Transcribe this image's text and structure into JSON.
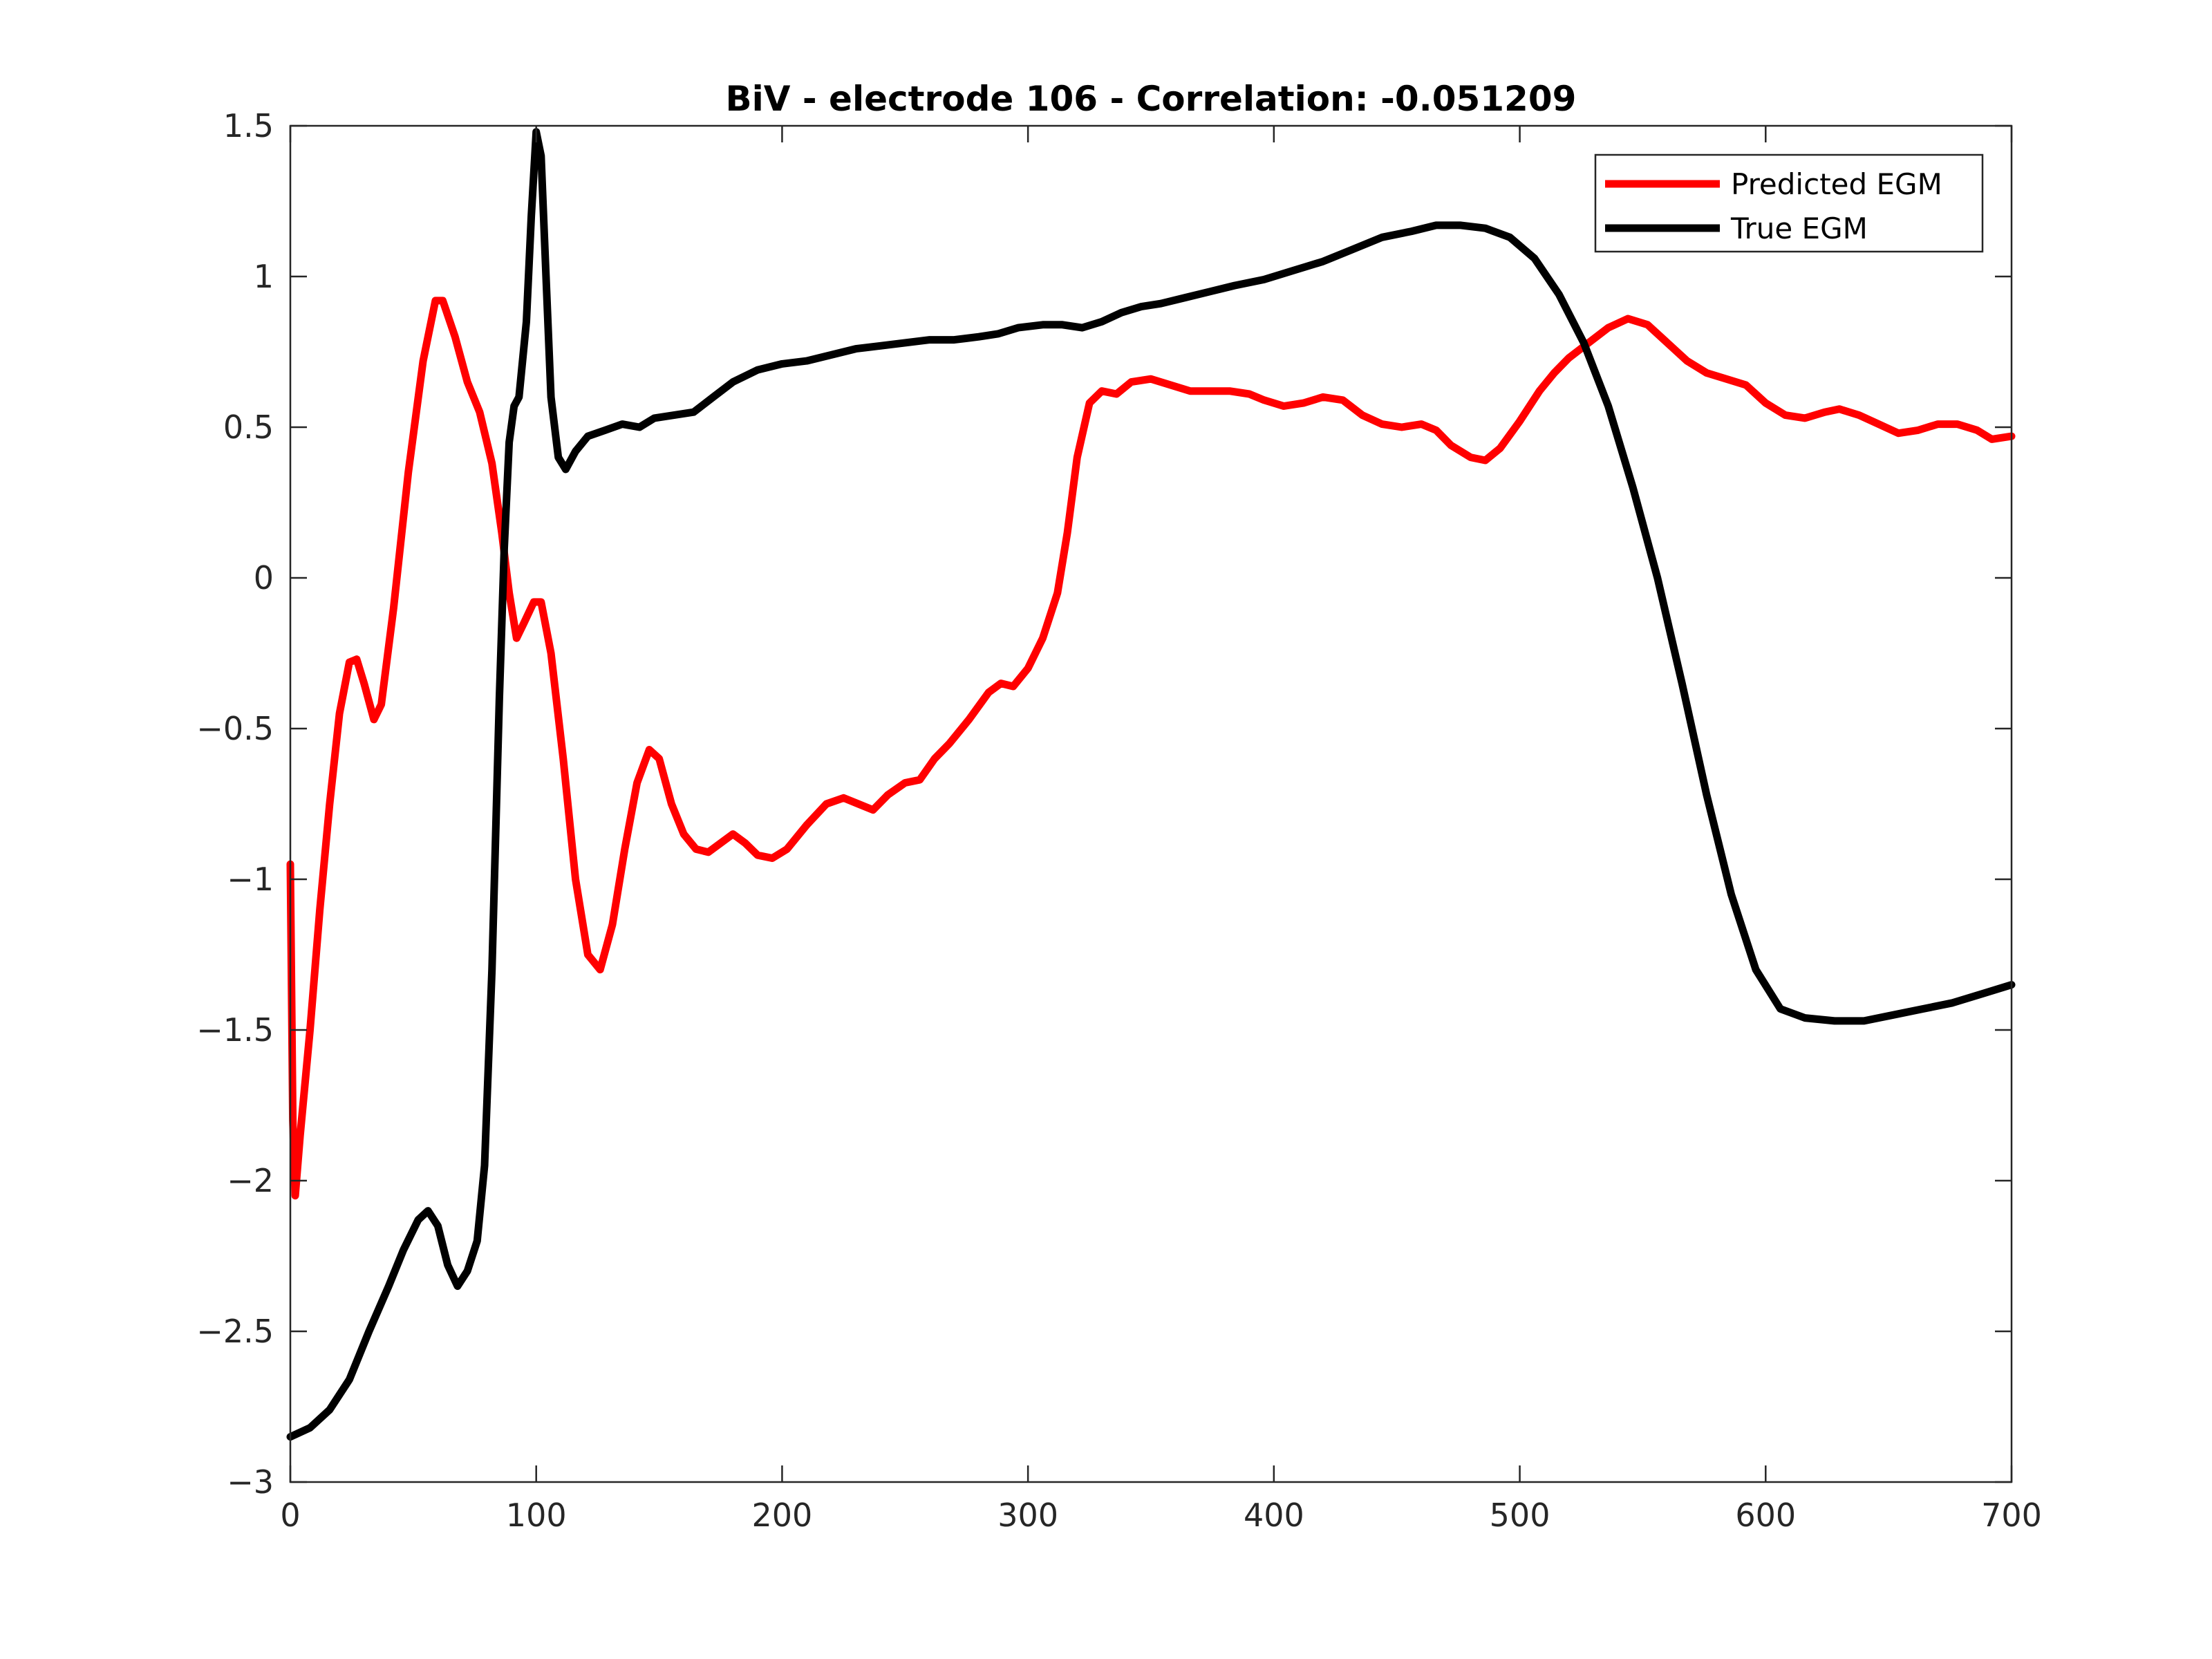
{
  "chart_data": {
    "type": "line",
    "title": "BiV - electrode 106 - Correlation: -0.051209",
    "xlabel": "",
    "ylabel": "",
    "xlim": [
      0,
      700
    ],
    "ylim": [
      -3,
      1.5
    ],
    "xticks": [
      0,
      100,
      200,
      300,
      400,
      500,
      600,
      700
    ],
    "yticks": [
      1.5,
      1,
      0.5,
      0,
      -0.5,
      -1,
      -1.5,
      -2,
      -2.5,
      -3
    ],
    "xtick_labels": [
      "0",
      "100",
      "200",
      "300",
      "400",
      "500",
      "600",
      "700"
    ],
    "ytick_labels": [
      "1.5",
      "1",
      "0.5",
      "0",
      "−0.5",
      "−1",
      "−1.5",
      "−2",
      "−2.5",
      "−3"
    ],
    "grid": false,
    "legend": {
      "position": "top-right"
    },
    "series": [
      {
        "name": "Predicted EGM",
        "color": "#ff0000",
        "points": [
          [
            0,
            -0.95
          ],
          [
            1,
            -1.8
          ],
          [
            2,
            -2.05
          ],
          [
            4,
            -1.85
          ],
          [
            8,
            -1.5
          ],
          [
            12,
            -1.1
          ],
          [
            16,
            -0.75
          ],
          [
            20,
            -0.45
          ],
          [
            24,
            -0.28
          ],
          [
            27,
            -0.27
          ],
          [
            30,
            -0.35
          ],
          [
            34,
            -0.47
          ],
          [
            37,
            -0.42
          ],
          [
            42,
            -0.1
          ],
          [
            48,
            0.35
          ],
          [
            54,
            0.72
          ],
          [
            59,
            0.92
          ],
          [
            62,
            0.92
          ],
          [
            67,
            0.8
          ],
          [
            72,
            0.65
          ],
          [
            77,
            0.55
          ],
          [
            82,
            0.38
          ],
          [
            86,
            0.15
          ],
          [
            89,
            -0.05
          ],
          [
            92,
            -0.2
          ],
          [
            95,
            -0.15
          ],
          [
            99,
            -0.08
          ],
          [
            102,
            -0.08
          ],
          [
            106,
            -0.25
          ],
          [
            111,
            -0.6
          ],
          [
            116,
            -1.0
          ],
          [
            121,
            -1.25
          ],
          [
            126,
            -1.3
          ],
          [
            131,
            -1.15
          ],
          [
            136,
            -0.9
          ],
          [
            141,
            -0.68
          ],
          [
            146,
            -0.57
          ],
          [
            150,
            -0.6
          ],
          [
            155,
            -0.75
          ],
          [
            160,
            -0.85
          ],
          [
            165,
            -0.9
          ],
          [
            170,
            -0.91
          ],
          [
            175,
            -0.88
          ],
          [
            180,
            -0.85
          ],
          [
            185,
            -0.88
          ],
          [
            190,
            -0.92
          ],
          [
            196,
            -0.93
          ],
          [
            202,
            -0.9
          ],
          [
            210,
            -0.82
          ],
          [
            218,
            -0.75
          ],
          [
            225,
            -0.73
          ],
          [
            231,
            -0.75
          ],
          [
            237,
            -0.77
          ],
          [
            243,
            -0.72
          ],
          [
            250,
            -0.68
          ],
          [
            256,
            -0.67
          ],
          [
            262,
            -0.6
          ],
          [
            268,
            -0.55
          ],
          [
            276,
            -0.47
          ],
          [
            284,
            -0.38
          ],
          [
            289,
            -0.35
          ],
          [
            294,
            -0.36
          ],
          [
            300,
            -0.3
          ],
          [
            306,
            -0.2
          ],
          [
            312,
            -0.05
          ],
          [
            316,
            0.15
          ],
          [
            320,
            0.4
          ],
          [
            325,
            0.58
          ],
          [
            330,
            0.62
          ],
          [
            336,
            0.61
          ],
          [
            342,
            0.65
          ],
          [
            350,
            0.66
          ],
          [
            358,
            0.64
          ],
          [
            366,
            0.62
          ],
          [
            374,
            0.62
          ],
          [
            382,
            0.62
          ],
          [
            390,
            0.61
          ],
          [
            396,
            0.59
          ],
          [
            404,
            0.57
          ],
          [
            412,
            0.58
          ],
          [
            420,
            0.6
          ],
          [
            428,
            0.59
          ],
          [
            436,
            0.54
          ],
          [
            444,
            0.51
          ],
          [
            452,
            0.5
          ],
          [
            460,
            0.51
          ],
          [
            466,
            0.49
          ],
          [
            472,
            0.44
          ],
          [
            480,
            0.4
          ],
          [
            486,
            0.39
          ],
          [
            492,
            0.43
          ],
          [
            500,
            0.52
          ],
          [
            508,
            0.62
          ],
          [
            514,
            0.68
          ],
          [
            520,
            0.73
          ],
          [
            528,
            0.78
          ],
          [
            536,
            0.83
          ],
          [
            544,
            0.86
          ],
          [
            552,
            0.84
          ],
          [
            560,
            0.78
          ],
          [
            568,
            0.72
          ],
          [
            576,
            0.68
          ],
          [
            584,
            0.66
          ],
          [
            592,
            0.64
          ],
          [
            600,
            0.58
          ],
          [
            608,
            0.54
          ],
          [
            616,
            0.53
          ],
          [
            624,
            0.55
          ],
          [
            630,
            0.56
          ],
          [
            638,
            0.54
          ],
          [
            646,
            0.51
          ],
          [
            654,
            0.48
          ],
          [
            662,
            0.49
          ],
          [
            670,
            0.51
          ],
          [
            678,
            0.51
          ],
          [
            686,
            0.49
          ],
          [
            692,
            0.46
          ],
          [
            700,
            0.47
          ]
        ]
      },
      {
        "name": "True EGM",
        "color": "#000000",
        "points": [
          [
            0,
            -2.85
          ],
          [
            8,
            -2.82
          ],
          [
            16,
            -2.76
          ],
          [
            24,
            -2.66
          ],
          [
            32,
            -2.5
          ],
          [
            40,
            -2.35
          ],
          [
            46,
            -2.23
          ],
          [
            52,
            -2.13
          ],
          [
            56,
            -2.1
          ],
          [
            60,
            -2.15
          ],
          [
            64,
            -2.28
          ],
          [
            68,
            -2.35
          ],
          [
            72,
            -2.3
          ],
          [
            76,
            -2.2
          ],
          [
            79,
            -1.95
          ],
          [
            82,
            -1.3
          ],
          [
            85,
            -0.4
          ],
          [
            87,
            0.1
          ],
          [
            89,
            0.45
          ],
          [
            91,
            0.57
          ],
          [
            93,
            0.6
          ],
          [
            96,
            0.85
          ],
          [
            98,
            1.2
          ],
          [
            100,
            1.48
          ],
          [
            102,
            1.4
          ],
          [
            104,
            1.0
          ],
          [
            106,
            0.6
          ],
          [
            109,
            0.4
          ],
          [
            112,
            0.36
          ],
          [
            116,
            0.42
          ],
          [
            121,
            0.47
          ],
          [
            128,
            0.49
          ],
          [
            135,
            0.51
          ],
          [
            142,
            0.5
          ],
          [
            148,
            0.53
          ],
          [
            156,
            0.54
          ],
          [
            164,
            0.55
          ],
          [
            172,
            0.6
          ],
          [
            180,
            0.65
          ],
          [
            190,
            0.69
          ],
          [
            200,
            0.71
          ],
          [
            210,
            0.72
          ],
          [
            220,
            0.74
          ],
          [
            230,
            0.76
          ],
          [
            240,
            0.77
          ],
          [
            250,
            0.78
          ],
          [
            260,
            0.79
          ],
          [
            270,
            0.79
          ],
          [
            280,
            0.8
          ],
          [
            288,
            0.81
          ],
          [
            296,
            0.83
          ],
          [
            306,
            0.84
          ],
          [
            314,
            0.84
          ],
          [
            322,
            0.83
          ],
          [
            330,
            0.85
          ],
          [
            338,
            0.88
          ],
          [
            346,
            0.9
          ],
          [
            354,
            0.91
          ],
          [
            364,
            0.93
          ],
          [
            374,
            0.95
          ],
          [
            384,
            0.97
          ],
          [
            396,
            0.99
          ],
          [
            408,
            1.02
          ],
          [
            420,
            1.05
          ],
          [
            432,
            1.09
          ],
          [
            444,
            1.13
          ],
          [
            456,
            1.15
          ],
          [
            466,
            1.17
          ],
          [
            476,
            1.17
          ],
          [
            486,
            1.16
          ],
          [
            496,
            1.13
          ],
          [
            506,
            1.06
          ],
          [
            516,
            0.94
          ],
          [
            526,
            0.78
          ],
          [
            536,
            0.57
          ],
          [
            546,
            0.3
          ],
          [
            556,
            0.0
          ],
          [
            566,
            -0.35
          ],
          [
            576,
            -0.72
          ],
          [
            586,
            -1.05
          ],
          [
            596,
            -1.3
          ],
          [
            606,
            -1.43
          ],
          [
            616,
            -1.46
          ],
          [
            628,
            -1.47
          ],
          [
            640,
            -1.47
          ],
          [
            652,
            -1.45
          ],
          [
            664,
            -1.43
          ],
          [
            676,
            -1.41
          ],
          [
            688,
            -1.38
          ],
          [
            700,
            -1.35
          ]
        ]
      }
    ]
  }
}
